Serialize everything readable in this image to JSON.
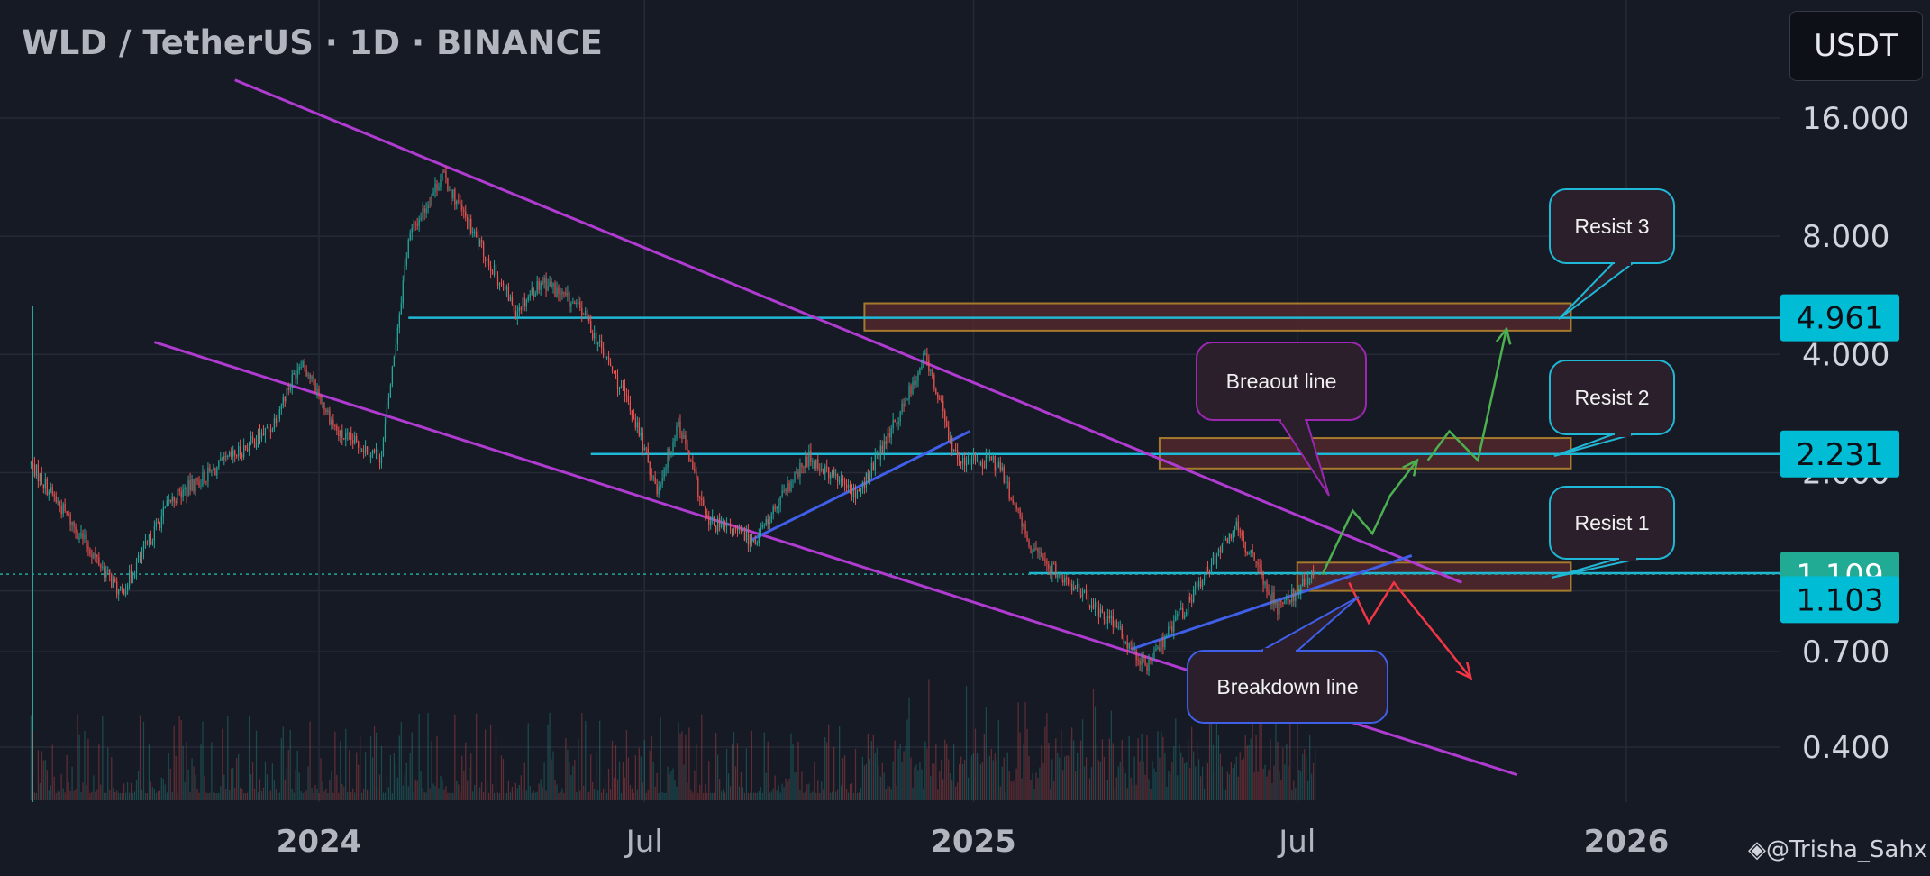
{
  "header": {
    "title": "WLD / TetherUS · 1D · BINANCE",
    "currency_button": "USDT"
  },
  "watermark": "◈@Trisha_Sahx",
  "chart_data": {
    "type": "candlestick",
    "title": "WLD / TetherUS · 1D · BINANCE",
    "y_scale": "log",
    "ylim": [
      0.3,
      22
    ],
    "y_ticks": [
      {
        "value": 16.0,
        "label": "16.000"
      },
      {
        "value": 8.0,
        "label": "8.000"
      },
      {
        "value": 4.0,
        "label": "4.000"
      },
      {
        "value": 2.0,
        "label": "2.000"
      },
      {
        "value": 1.0,
        "label": "1.000"
      },
      {
        "value": 0.7,
        "label": "0.700"
      },
      {
        "value": 0.4,
        "label": "0.400"
      }
    ],
    "x_ticks": [
      {
        "date": "2024-01-01",
        "label": "2024"
      },
      {
        "date": "2024-07-01",
        "label": "Jul"
      },
      {
        "date": "2025-01-01",
        "label": "2025"
      },
      {
        "date": "2025-07-01",
        "label": "Jul"
      },
      {
        "date": "2026-01-01",
        "label": "2026"
      }
    ],
    "x_range": [
      "2023-07-24",
      "2026-03-15"
    ],
    "price_path": [
      [
        "2023-07-24",
        2.1
      ],
      [
        "2023-08-20",
        1.4
      ],
      [
        "2023-09-12",
        0.98
      ],
      [
        "2023-10-10",
        1.7
      ],
      [
        "2023-11-08",
        2.1
      ],
      [
        "2023-12-05",
        2.6
      ],
      [
        "2023-12-22",
        3.9
      ],
      [
        "2024-01-12",
        2.5
      ],
      [
        "2024-02-05",
        2.2
      ],
      [
        "2024-02-20",
        7.9
      ],
      [
        "2024-03-10",
        11.5
      ],
      [
        "2024-03-28",
        8.0
      ],
      [
        "2024-04-20",
        5.2
      ],
      [
        "2024-05-05",
        6.2
      ],
      [
        "2024-05-28",
        5.1
      ],
      [
        "2024-06-25",
        2.8
      ],
      [
        "2024-07-08",
        1.8
      ],
      [
        "2024-07-20",
        2.7
      ],
      [
        "2024-08-05",
        1.5
      ],
      [
        "2024-09-01",
        1.35
      ],
      [
        "2024-10-01",
        2.2
      ],
      [
        "2024-10-28",
        1.75
      ],
      [
        "2024-11-20",
        2.8
      ],
      [
        "2024-12-05",
        4.0
      ],
      [
        "2024-12-22",
        2.2
      ],
      [
        "2025-01-15",
        2.1
      ],
      [
        "2025-02-03",
        1.25
      ],
      [
        "2025-03-01",
        1.0
      ],
      [
        "2025-03-25",
        0.78
      ],
      [
        "2025-04-08",
        0.63
      ],
      [
        "2025-05-15",
        1.2
      ],
      [
        "2025-05-28",
        1.45
      ],
      [
        "2025-06-20",
        0.9
      ],
      [
        "2025-07-11",
        1.103
      ]
    ],
    "annotations": {
      "horizontal_levels": [
        4.961,
        2.231,
        1.109
      ],
      "resistance_zones": [
        {
          "low": 4.6,
          "high": 5.4
        },
        {
          "low": 2.05,
          "high": 2.45
        },
        {
          "low": 1.0,
          "high": 1.18
        }
      ],
      "price_labels": [
        {
          "value": "4.961",
          "bg": "#00bcd4"
        },
        {
          "value": "2.231",
          "bg": "#00bcd4"
        },
        {
          "value": "1.109",
          "bg": "#22ab94"
        },
        {
          "value": "1.103",
          "bg": "#00bcd4"
        }
      ],
      "callouts": [
        "Resist 3",
        "Resist 2",
        "Resist 1",
        "Breaout line",
        "Breakdown line"
      ]
    },
    "colors": {
      "background": "#161a25",
      "up": "#26a69a",
      "down": "#ef5350",
      "channel": "#b03bd0",
      "trendline": "#3f5fe8",
      "level": "#1fb8d6",
      "zone_fill": "#5a2a2c",
      "zone_border": "#a67a2d",
      "bull_path": "#4caf50",
      "bear_path": "#f23645"
    }
  }
}
